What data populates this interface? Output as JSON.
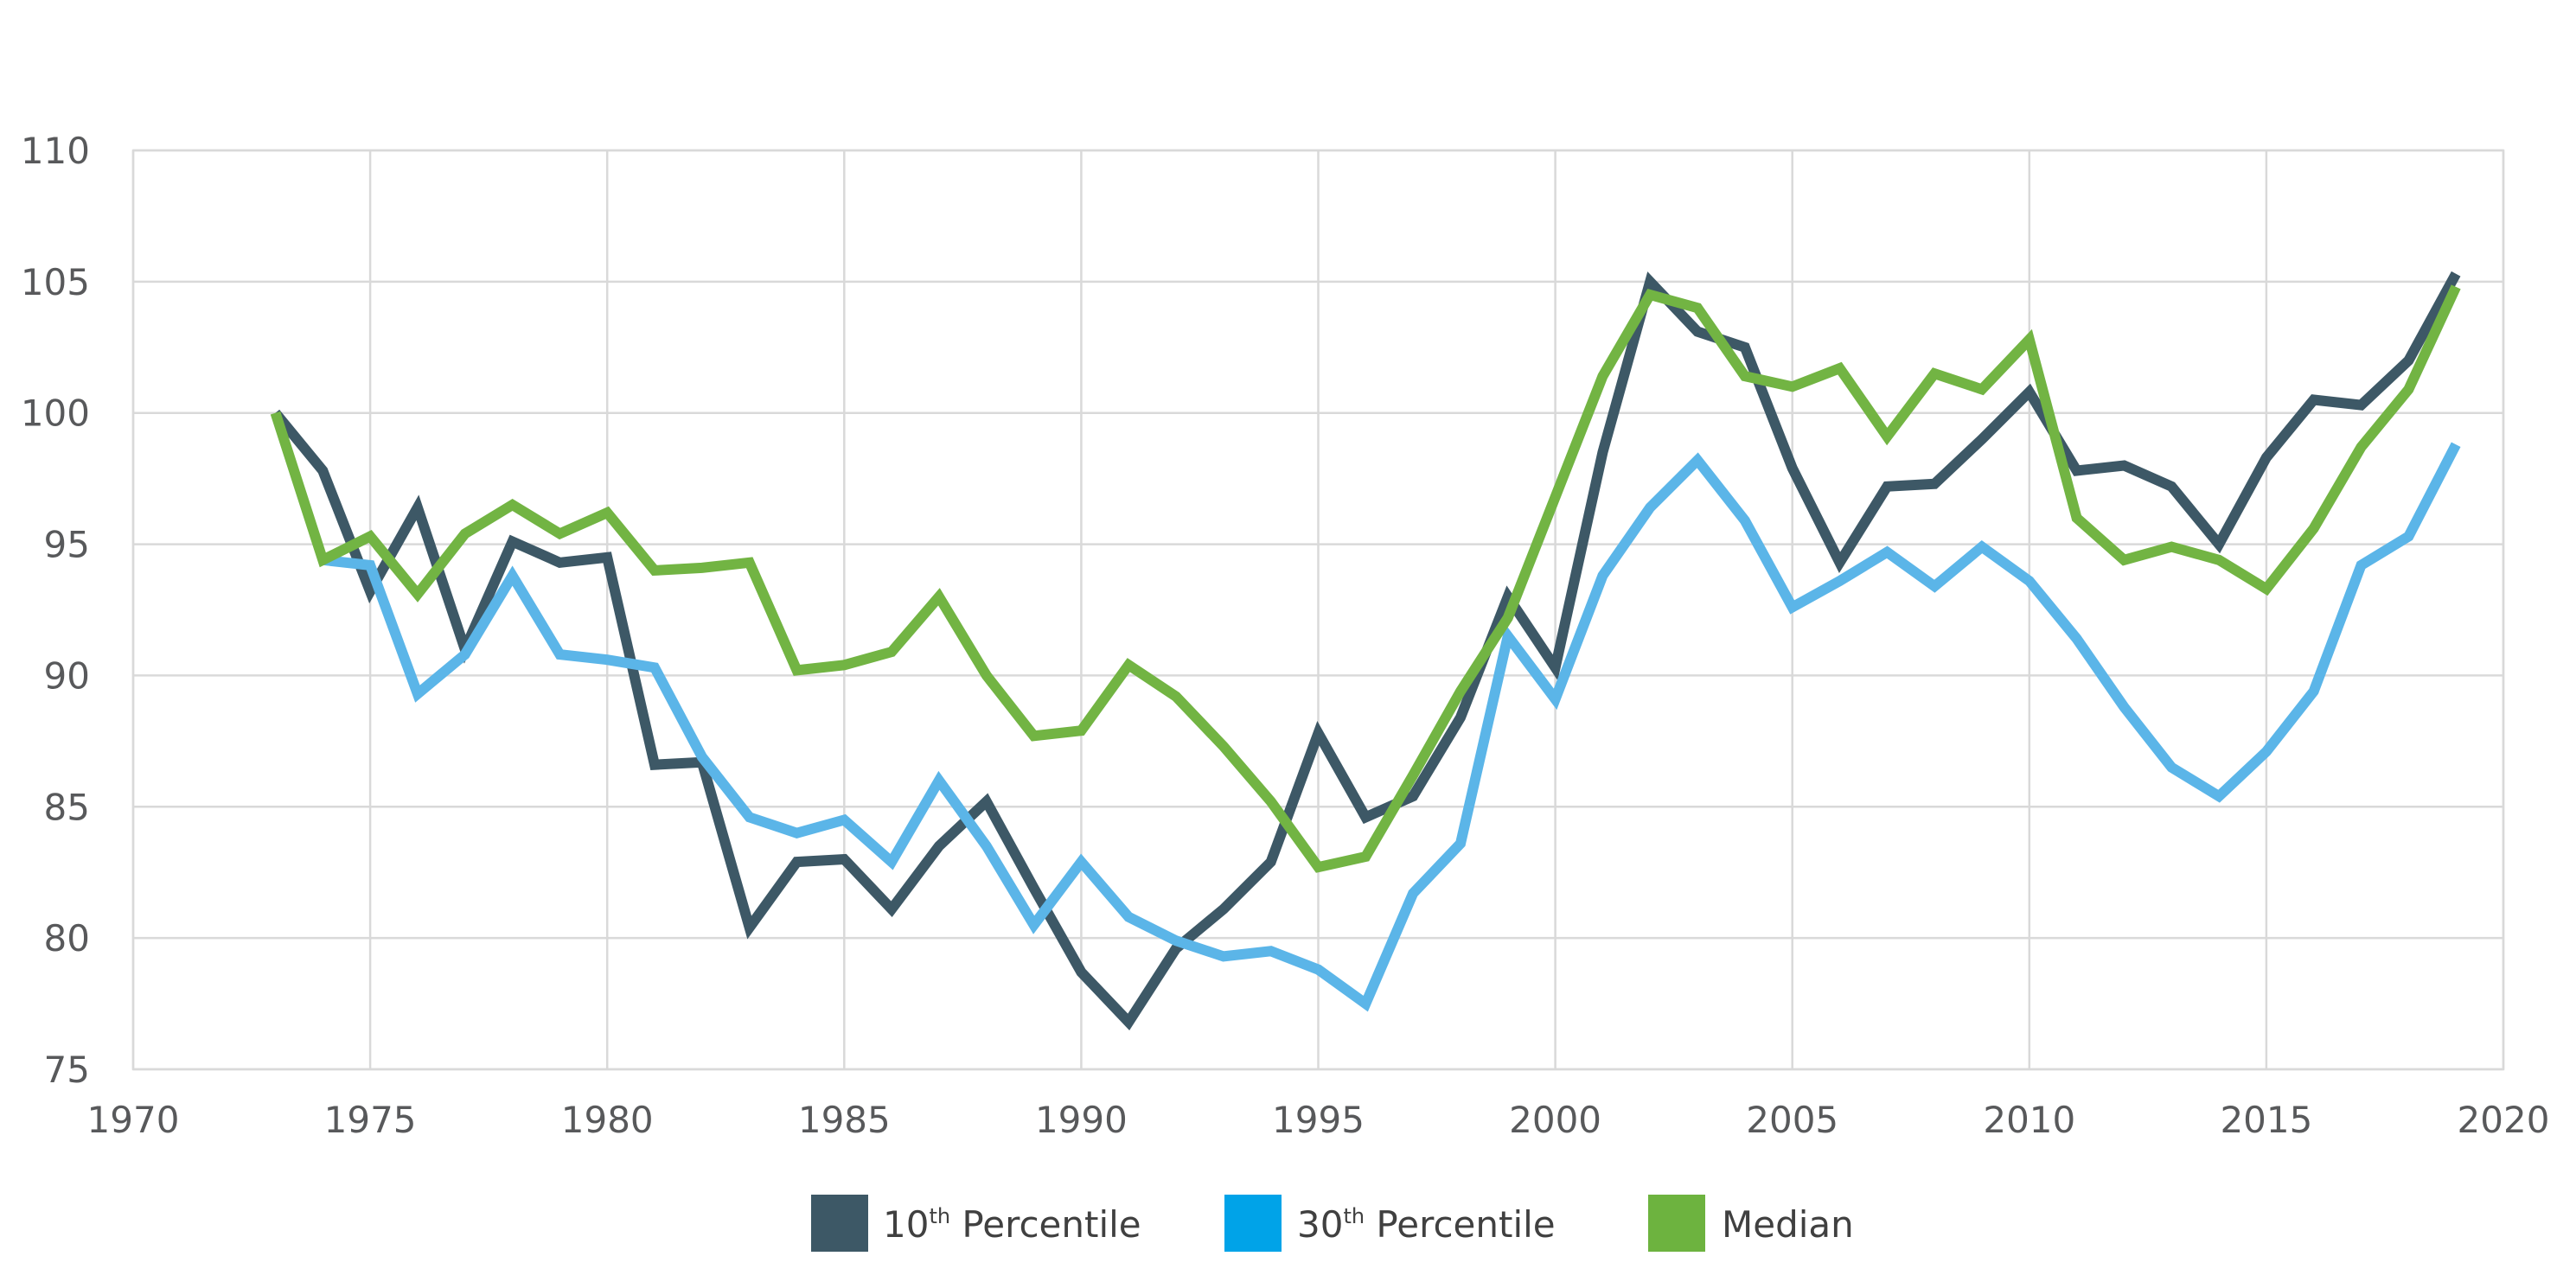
{
  "chart_data": {
    "type": "line",
    "title": "",
    "xlabel": "",
    "ylabel": "",
    "xlim": [
      1970,
      2020
    ],
    "ylim": [
      75,
      110
    ],
    "x_ticks": [
      1970,
      1975,
      1980,
      1985,
      1990,
      1995,
      2000,
      2005,
      2010,
      2015,
      2020
    ],
    "y_ticks": [
      75,
      80,
      85,
      90,
      95,
      100,
      105,
      110
    ],
    "grid": true,
    "legend_position": "bottom",
    "series": [
      {
        "name": "10th Percentile",
        "legend_base": "10",
        "legend_sup": "th",
        "legend_rest": " Percentile",
        "color": "#3d5866",
        "x": [
          1973,
          1974,
          1975,
          1976,
          1977,
          1978,
          1979,
          1980,
          1981,
          1982,
          1983,
          1984,
          1985,
          1986,
          1987,
          1988,
          1989,
          1990,
          1991,
          1992,
          1993,
          1994,
          1995,
          1996,
          1997,
          1998,
          1999,
          2000,
          2001,
          2002,
          2003,
          2004,
          2005,
          2006,
          2007,
          2008,
          2009,
          2010,
          2011,
          2012,
          2013,
          2014,
          2015,
          2016,
          2017,
          2018,
          2019
        ],
        "values": [
          100.0,
          97.8,
          93.2,
          96.4,
          91.0,
          95.1,
          94.3,
          94.5,
          86.6,
          86.7,
          80.4,
          82.9,
          83.0,
          81.1,
          83.5,
          85.2,
          81.9,
          78.7,
          76.8,
          79.6,
          81.1,
          82.9,
          87.8,
          84.6,
          85.4,
          88.4,
          93.0,
          90.3,
          98.5,
          105.0,
          103.1,
          102.5,
          97.9,
          94.3,
          97.2,
          97.3,
          99.0,
          100.8,
          97.8,
          98.0,
          97.2,
          95.0,
          98.3,
          100.5,
          100.3,
          102.0,
          105.3
        ]
      },
      {
        "name": "30th Percentile",
        "legend_base": "30",
        "legend_sup": "th",
        "legend_rest": " Percentile",
        "color": "#5bb5e8",
        "swatch_color": "#00a3e8",
        "x": [
          1974,
          1975,
          1976,
          1977,
          1978,
          1979,
          1980,
          1981,
          1982,
          1983,
          1984,
          1985,
          1986,
          1987,
          1988,
          1989,
          1990,
          1991,
          1992,
          1993,
          1994,
          1995,
          1996,
          1997,
          1998,
          1999,
          2000,
          2001,
          2002,
          2003,
          2004,
          2005,
          2006,
          2007,
          2008,
          2009,
          2010,
          2011,
          2012,
          2013,
          2014,
          2015,
          2016,
          2017,
          2018,
          2019
        ],
        "values": [
          94.4,
          94.2,
          89.3,
          90.8,
          93.8,
          90.8,
          90.6,
          90.3,
          86.9,
          84.6,
          84.0,
          84.5,
          82.9,
          86.0,
          83.5,
          80.5,
          82.9,
          80.8,
          79.9,
          79.3,
          79.5,
          78.8,
          77.5,
          81.7,
          83.6,
          91.5,
          89.1,
          93.8,
          96.4,
          98.2,
          95.9,
          92.6,
          93.6,
          94.7,
          93.4,
          94.9,
          93.6,
          91.4,
          88.8,
          86.5,
          85.4,
          87.1,
          89.4,
          94.2,
          95.3,
          98.8
        ]
      },
      {
        "name": "Median",
        "legend_base": "Median",
        "legend_sup": "",
        "legend_rest": "",
        "color": "#72b443",
        "swatch_color": "#6db33f",
        "x": [
          1973,
          1974,
          1975,
          1976,
          1977,
          1978,
          1979,
          1980,
          1981,
          1982,
          1983,
          1984,
          1985,
          1986,
          1987,
          1988,
          1989,
          1990,
          1991,
          1992,
          1993,
          1994,
          1995,
          1996,
          1997,
          1998,
          1999,
          2000,
          2001,
          2002,
          2003,
          2004,
          2005,
          2006,
          2007,
          2008,
          2009,
          2010,
          2011,
          2012,
          2013,
          2014,
          2015,
          2016,
          2017,
          2018,
          2019
        ],
        "values": [
          100.0,
          94.4,
          95.3,
          93.1,
          95.4,
          96.5,
          95.4,
          96.2,
          94.0,
          94.1,
          94.3,
          90.2,
          90.4,
          90.9,
          93.0,
          90.0,
          87.7,
          87.9,
          90.4,
          89.2,
          87.3,
          85.2,
          82.7,
          83.1,
          86.2,
          89.4,
          92.2,
          96.8,
          101.4,
          104.5,
          104.0,
          101.4,
          101.0,
          101.7,
          99.1,
          101.5,
          100.9,
          102.8,
          96.0,
          94.4,
          94.9,
          94.4,
          93.3,
          95.6,
          98.7,
          100.9,
          104.8
        ]
      }
    ]
  }
}
